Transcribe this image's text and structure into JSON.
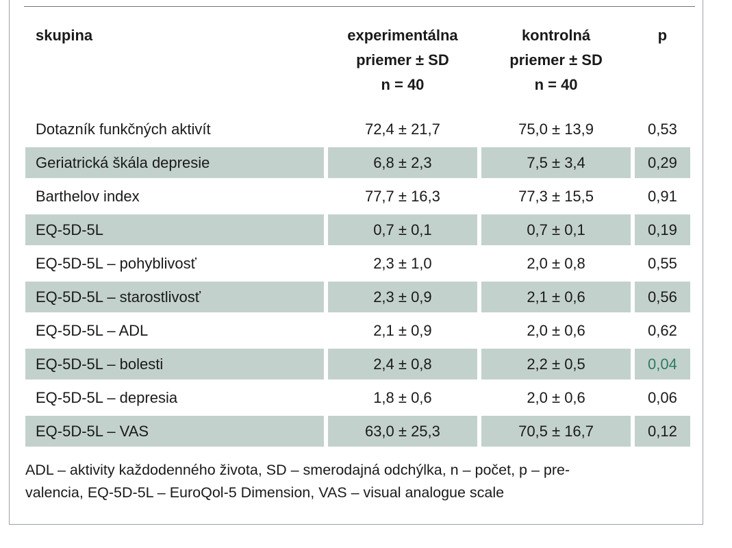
{
  "table": {
    "headers": {
      "group": "skupina",
      "experimental": [
        "experimentálna",
        "priemer ± SD",
        "n = 40"
      ],
      "control": [
        "kontrolná",
        "priemer ± SD",
        "n = 40"
      ],
      "p": "p"
    },
    "rows": [
      {
        "group": "Dotazník funkčných aktivít",
        "experimental": "72,4 ± 21,7",
        "control": "75,0 ± 13,9",
        "p": "0,53",
        "shaded": false,
        "significant": false
      },
      {
        "group": "Geriatrická škála depresie",
        "experimental": "6,8 ± 2,3",
        "control": "7,5 ± 3,4",
        "p": "0,29",
        "shaded": true,
        "significant": false
      },
      {
        "group": "Barthelov index",
        "experimental": "77,7 ± 16,3",
        "control": "77,3 ± 15,5",
        "p": "0,91",
        "shaded": false,
        "significant": false
      },
      {
        "group": "EQ-5D-5L",
        "experimental": "0,7 ± 0,1",
        "control": "0,7 ± 0,1",
        "p": "0,19",
        "shaded": true,
        "significant": false
      },
      {
        "group": "EQ-5D-5L – pohyblivosť",
        "experimental": "2,3 ± 1,0",
        "control": "2,0 ± 0,8",
        "p": "0,55",
        "shaded": false,
        "significant": false
      },
      {
        "group": "EQ-5D-5L – starostlivosť",
        "experimental": "2,3 ± 0,9",
        "control": "2,1 ± 0,6",
        "p": "0,56",
        "shaded": true,
        "significant": false
      },
      {
        "group": "EQ-5D-5L – ADL",
        "experimental": "2,1 ± 0,9",
        "control": "2,0 ± 0,6",
        "p": "0,62",
        "shaded": false,
        "significant": false
      },
      {
        "group": "EQ-5D-5L – bolesti",
        "experimental": "2,4 ± 0,8",
        "control": "2,2 ± 0,5",
        "p": "0,04",
        "shaded": true,
        "significant": true
      },
      {
        "group": "EQ-5D-5L – depresia",
        "experimental": "1,8 ± 0,6",
        "control": "2,0 ± 0,6",
        "p": "0,06",
        "shaded": false,
        "significant": false
      },
      {
        "group": "EQ-5D-5L – VAS",
        "experimental": "63,0 ± 25,3",
        "control": "70,5 ± 16,7",
        "p": "0,12",
        "shaded": true,
        "significant": false
      }
    ]
  },
  "footnote": {
    "line1": "ADL – aktivity každodenného života, SD – smerodajná odchýlka, n – počet, p – pre-",
    "line2": "valencia, EQ-5D-5L – EuroQol-5 Dimension, VAS – visual analogue scale"
  },
  "colors": {
    "shade": "#c3d1cd",
    "significant": "#2e7a63",
    "border": "#9aa0a3"
  }
}
